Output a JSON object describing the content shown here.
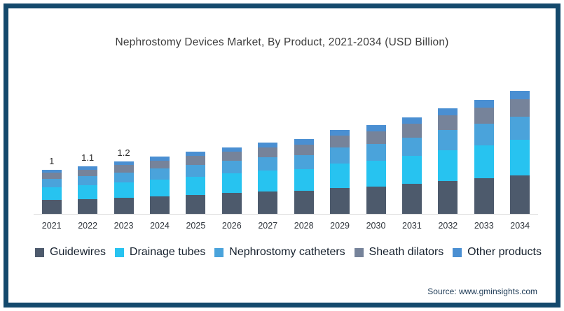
{
  "title": "Nephrostomy Devices Market, By Product, 2021-2034 (USD Billion)",
  "source": "Source: www.gminsights.com",
  "frame_color": "#14496c",
  "chart_data": {
    "type": "bar",
    "stacked": true,
    "title": "Nephrostomy Devices Market, By Product, 2021-2034 (USD Billion)",
    "xlabel": "",
    "ylabel": "",
    "grid": false,
    "legend_position": "bottom",
    "ylim": [
      0,
      3
    ],
    "categories": [
      "2021",
      "2022",
      "2023",
      "2024",
      "2025",
      "2026",
      "2027",
      "2028",
      "2029",
      "2030",
      "2031",
      "2032",
      "2033",
      "2034"
    ],
    "totals": [
      1,
      1.1,
      1.2,
      1.3,
      1.4,
      1.5,
      1.6,
      1.7,
      1.9,
      2.0,
      2.2,
      2.4,
      2.6,
      2.8
    ],
    "data_labels": [
      "1",
      "1.1",
      "1.2",
      "",
      "",
      "",
      "",
      "",
      "",
      "",
      "",
      "",
      "",
      ""
    ],
    "series": [
      {
        "name": "Guidewires",
        "color": "#4d5a6c",
        "values": [
          0.31,
          0.34,
          0.37,
          0.4,
          0.43,
          0.47,
          0.5,
          0.53,
          0.59,
          0.62,
          0.68,
          0.74,
          0.81,
          0.87
        ]
      },
      {
        "name": "Drainage tubes",
        "color": "#27c3f0",
        "values": [
          0.29,
          0.32,
          0.35,
          0.38,
          0.41,
          0.44,
          0.47,
          0.49,
          0.55,
          0.58,
          0.64,
          0.7,
          0.75,
          0.81
        ]
      },
      {
        "name": "Nephrostomy catheters",
        "color": "#4aa3db",
        "values": [
          0.19,
          0.21,
          0.23,
          0.25,
          0.27,
          0.28,
          0.3,
          0.32,
          0.36,
          0.38,
          0.42,
          0.46,
          0.49,
          0.53
        ]
      },
      {
        "name": "Sheath dilators",
        "color": "#76839a",
        "values": [
          0.14,
          0.15,
          0.17,
          0.18,
          0.2,
          0.21,
          0.22,
          0.24,
          0.27,
          0.28,
          0.31,
          0.34,
          0.37,
          0.4
        ]
      },
      {
        "name": "Other products",
        "color": "#4a8fd2",
        "values": [
          0.07,
          0.08,
          0.08,
          0.09,
          0.09,
          0.1,
          0.11,
          0.12,
          0.13,
          0.14,
          0.15,
          0.16,
          0.18,
          0.19
        ]
      }
    ]
  }
}
